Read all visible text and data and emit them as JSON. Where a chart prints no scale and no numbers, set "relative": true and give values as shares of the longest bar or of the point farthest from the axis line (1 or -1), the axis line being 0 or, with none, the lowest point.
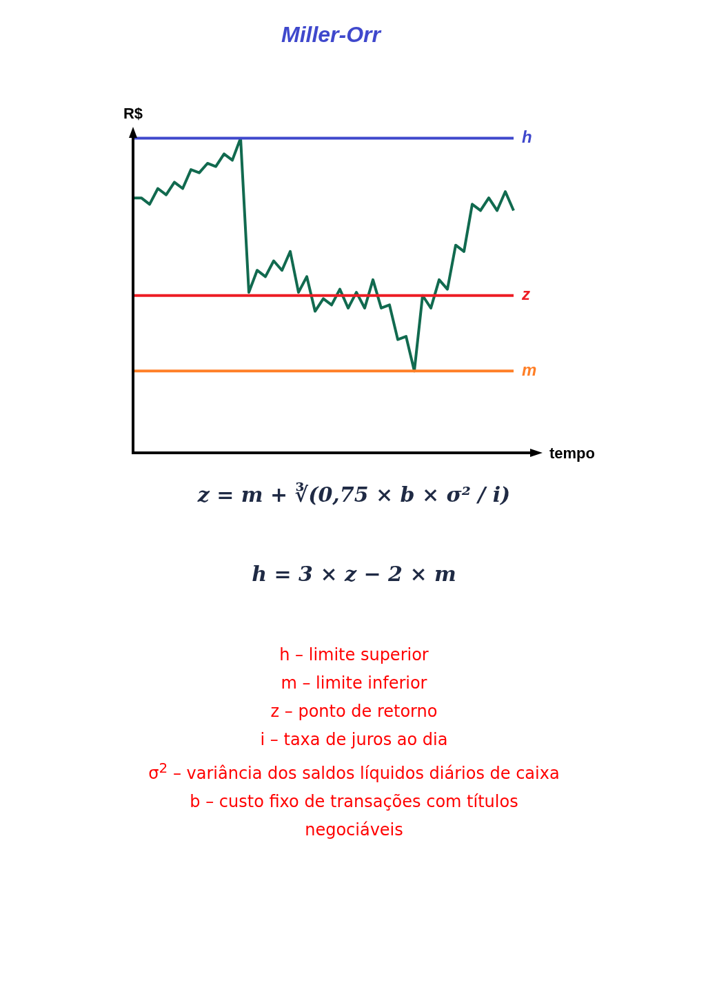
{
  "chart_data": {
    "type": "line",
    "title": "Miller-Orr",
    "ylabel": "R$",
    "xlabel": "tempo",
    "relative": true,
    "legend": false,
    "marker": "none",
    "line_style": "solid",
    "categories": [
      null,
      null,
      null,
      null,
      null,
      null,
      null,
      null,
      null,
      null,
      null,
      null,
      null,
      null,
      null,
      null,
      null,
      null,
      null,
      null,
      null,
      null,
      null,
      null,
      null,
      null,
      null,
      null,
      null,
      null,
      null,
      null,
      null,
      null,
      null,
      null,
      null,
      null,
      null,
      null,
      null,
      null,
      null,
      null,
      null,
      null,
      null
    ],
    "series": [
      {
        "color": "#116a4f",
        "values": [
          0.81,
          0.81,
          0.79,
          0.84,
          0.82,
          0.86,
          0.84,
          0.9,
          0.89,
          0.92,
          0.91,
          0.95,
          0.93,
          1.0,
          0.51,
          0.58,
          0.56,
          0.61,
          0.58,
          0.64,
          0.51,
          0.56,
          0.45,
          0.49,
          0.47,
          0.52,
          0.46,
          0.51,
          0.46,
          0.55,
          0.46,
          0.47,
          0.36,
          0.37,
          0.26,
          0.5,
          0.46,
          0.55,
          0.52,
          0.66,
          0.64,
          0.79,
          0.77,
          0.81,
          0.77,
          0.83,
          0.77
        ]
      }
    ],
    "ref_lines": [
      {
        "axis": "y",
        "value": 1.0,
        "label": "h",
        "color": "#3f48cc"
      },
      {
        "axis": "y",
        "value": 0.5,
        "label": "z",
        "color": "#ed1c24"
      },
      {
        "axis": "y",
        "value": 0.26,
        "label": "m",
        "color": "#ff7f27"
      }
    ],
    "annotations": [
      "z = m + ∛(0,75 × b × σ² / i)",
      "h = 3 × z − 2 × m",
      "h – limite superior",
      "m – limite inferior",
      "z – ponto de retorno",
      "i – taxa de juros ao dia",
      "σ$^{2}$ – variância dos saldos líquidos diários de caixa",
      "b – custo fixo de transações  com títulos negociáveis"
    ]
  }
}
